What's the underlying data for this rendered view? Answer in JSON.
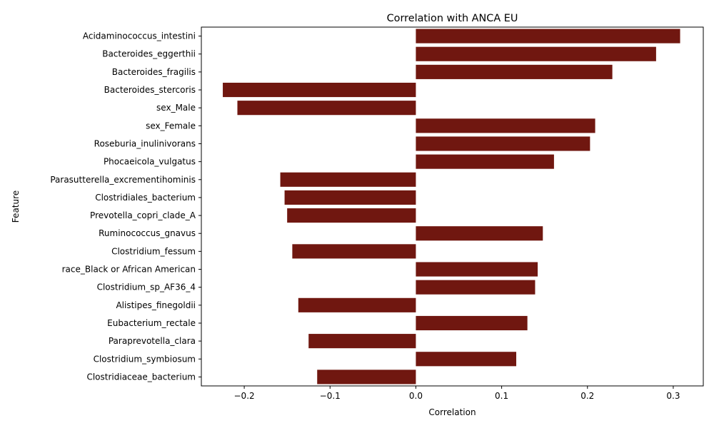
{
  "chart_data": {
    "type": "bar",
    "orientation": "horizontal",
    "title": "Correlation with ANCA EU",
    "xlabel": "Correlation",
    "ylabel": "Feature",
    "xlim": [
      -0.25,
      0.335
    ],
    "xticks": [
      -0.2,
      -0.1,
      0.0,
      0.1,
      0.2,
      0.3
    ],
    "xtick_labels": [
      "−0.2",
      "−0.1",
      "0.0",
      "0.1",
      "0.2",
      "0.3"
    ],
    "grid": false,
    "bar_color": "#701710",
    "categories": [
      "Acidaminococcus_intestini",
      "Bacteroides_eggerthii",
      "Bacteroides_fragilis",
      "Bacteroides_stercoris",
      "sex_Male",
      "sex_Female",
      "Roseburia_inulinivorans",
      "Phocaeicola_vulgatus",
      "Parasutterella_excrementihominis",
      "Clostridiales_bacterium",
      "Prevotella_copri_clade_A",
      "Ruminococcus_gnavus",
      "Clostridium_fessum",
      "race_Black or African American",
      "Clostridium_sp_AF36_4",
      "Alistipes_finegoldii",
      "Eubacterium_rectale",
      "Paraprevotella_clara",
      "Clostridium_symbiosum",
      "Clostridiaceae_bacterium"
    ],
    "values": [
      0.308,
      0.28,
      0.229,
      -0.225,
      -0.208,
      0.209,
      0.203,
      0.161,
      -0.158,
      -0.153,
      -0.15,
      0.148,
      -0.144,
      0.142,
      0.139,
      -0.137,
      0.13,
      -0.125,
      0.117,
      -0.115
    ]
  }
}
